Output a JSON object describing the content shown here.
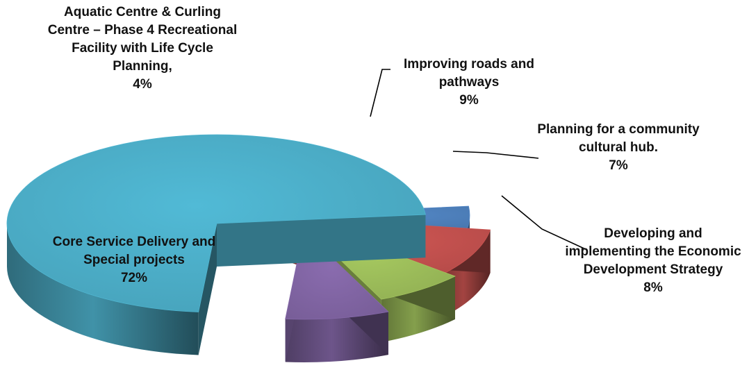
{
  "chart_data": {
    "type": "pie",
    "title": "",
    "three_d": true,
    "labels_position": "outside-with-leaders",
    "slices": [
      {
        "label": "Core Service Delivery and Special projects",
        "pct_text": "72%",
        "value": 72,
        "color": "#4BACC6"
      },
      {
        "label": "Aquatic Centre & Curling Centre – Phase 4 Recreational Facility with Life Cycle Planning,",
        "pct_text": "4%",
        "value": 4,
        "color": "#4F81BD"
      },
      {
        "label": "Improving roads and pathways",
        "pct_text": "9%",
        "value": 9,
        "color": "#C0504D"
      },
      {
        "label": "Planning for a community cultural hub.",
        "pct_text": "7%",
        "value": 7,
        "color": "#9BBB59"
      },
      {
        "label": "Developing and implementing the Economic Development Strategy",
        "pct_text": "8%",
        "value": 8,
        "color": "#8064A2"
      }
    ]
  }
}
